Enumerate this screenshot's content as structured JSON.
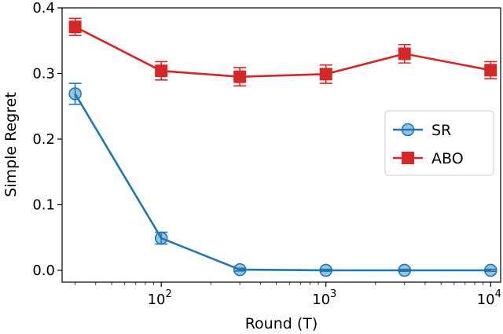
{
  "chart_data": {
    "type": "line",
    "xlabel": "Round (T)",
    "ylabel": "Simple Regret",
    "xscale": "log",
    "xlim": [
      25,
      11500
    ],
    "ylim": [
      -0.018,
      0.4
    ],
    "x_ticks": [
      {
        "value": 100,
        "base": "10",
        "exp": "2"
      },
      {
        "value": 1000,
        "base": "10",
        "exp": "3"
      },
      {
        "value": 10000,
        "base": "10",
        "exp": "4"
      }
    ],
    "y_ticks": [
      {
        "value": 0.0,
        "label": "0.0"
      },
      {
        "value": 0.1,
        "label": "0.1"
      },
      {
        "value": 0.2,
        "label": "0.2"
      },
      {
        "value": 0.3,
        "label": "0.3"
      },
      {
        "value": 0.4,
        "label": "0.4"
      }
    ],
    "grid": false,
    "legend_position": "center-right",
    "x": [
      30,
      100,
      300,
      1000,
      3000,
      10000
    ],
    "series": [
      {
        "name": "SR",
        "color": "#1f77b4",
        "marker": "circle",
        "values": [
          0.269,
          0.049,
          0.001,
          0.0,
          0.0,
          0.0
        ],
        "errors": [
          0.016,
          0.009,
          0.002,
          0.0015,
          0.0015,
          0.0015
        ]
      },
      {
        "name": "ABO",
        "color": "#d62728",
        "marker": "square",
        "values": [
          0.371,
          0.304,
          0.295,
          0.299,
          0.33,
          0.305
        ],
        "errors": [
          0.013,
          0.014,
          0.014,
          0.014,
          0.014,
          0.013
        ]
      }
    ]
  }
}
